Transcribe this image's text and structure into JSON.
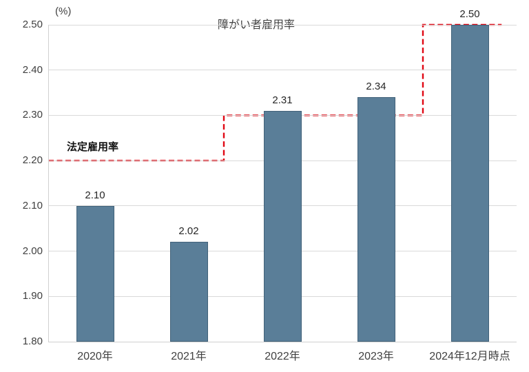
{
  "chart_data": {
    "type": "bar",
    "title": "障がい者雇用率",
    "unit_label": "(%)",
    "categories": [
      "2020年",
      "2021年",
      "2022年",
      "2023年",
      "2024年12月時点"
    ],
    "values": [
      2.1,
      2.02,
      2.31,
      2.34,
      2.5
    ],
    "value_labels": [
      "2.10",
      "2.02",
      "2.31",
      "2.34",
      "2.50"
    ],
    "yticks": [
      "2.50",
      "2.40",
      "2.30",
      "2.20",
      "2.10",
      "2.00",
      "1.90",
      "1.80"
    ],
    "ylim": [
      1.8,
      2.5
    ],
    "ytick_step": 0.1,
    "grid": true,
    "legend_position": "none",
    "bar_color": "#5a7e98",
    "bar_border_color": "#416179",
    "grid_color": "#d9d9d9",
    "text_color": "#3f3f3f",
    "legal_rate_line": {
      "label": "法定雇用率",
      "color": "#e00713",
      "style": "dashed",
      "shape": "step",
      "steps": [
        {
          "value": 2.2,
          "start_frac": 0.0,
          "end_frac": 0.375
        },
        {
          "value": 2.3,
          "start_frac": 0.375,
          "end_frac": 0.8
        },
        {
          "value": 2.5,
          "start_frac": 0.8,
          "end_frac": 0.968
        }
      ]
    }
  }
}
